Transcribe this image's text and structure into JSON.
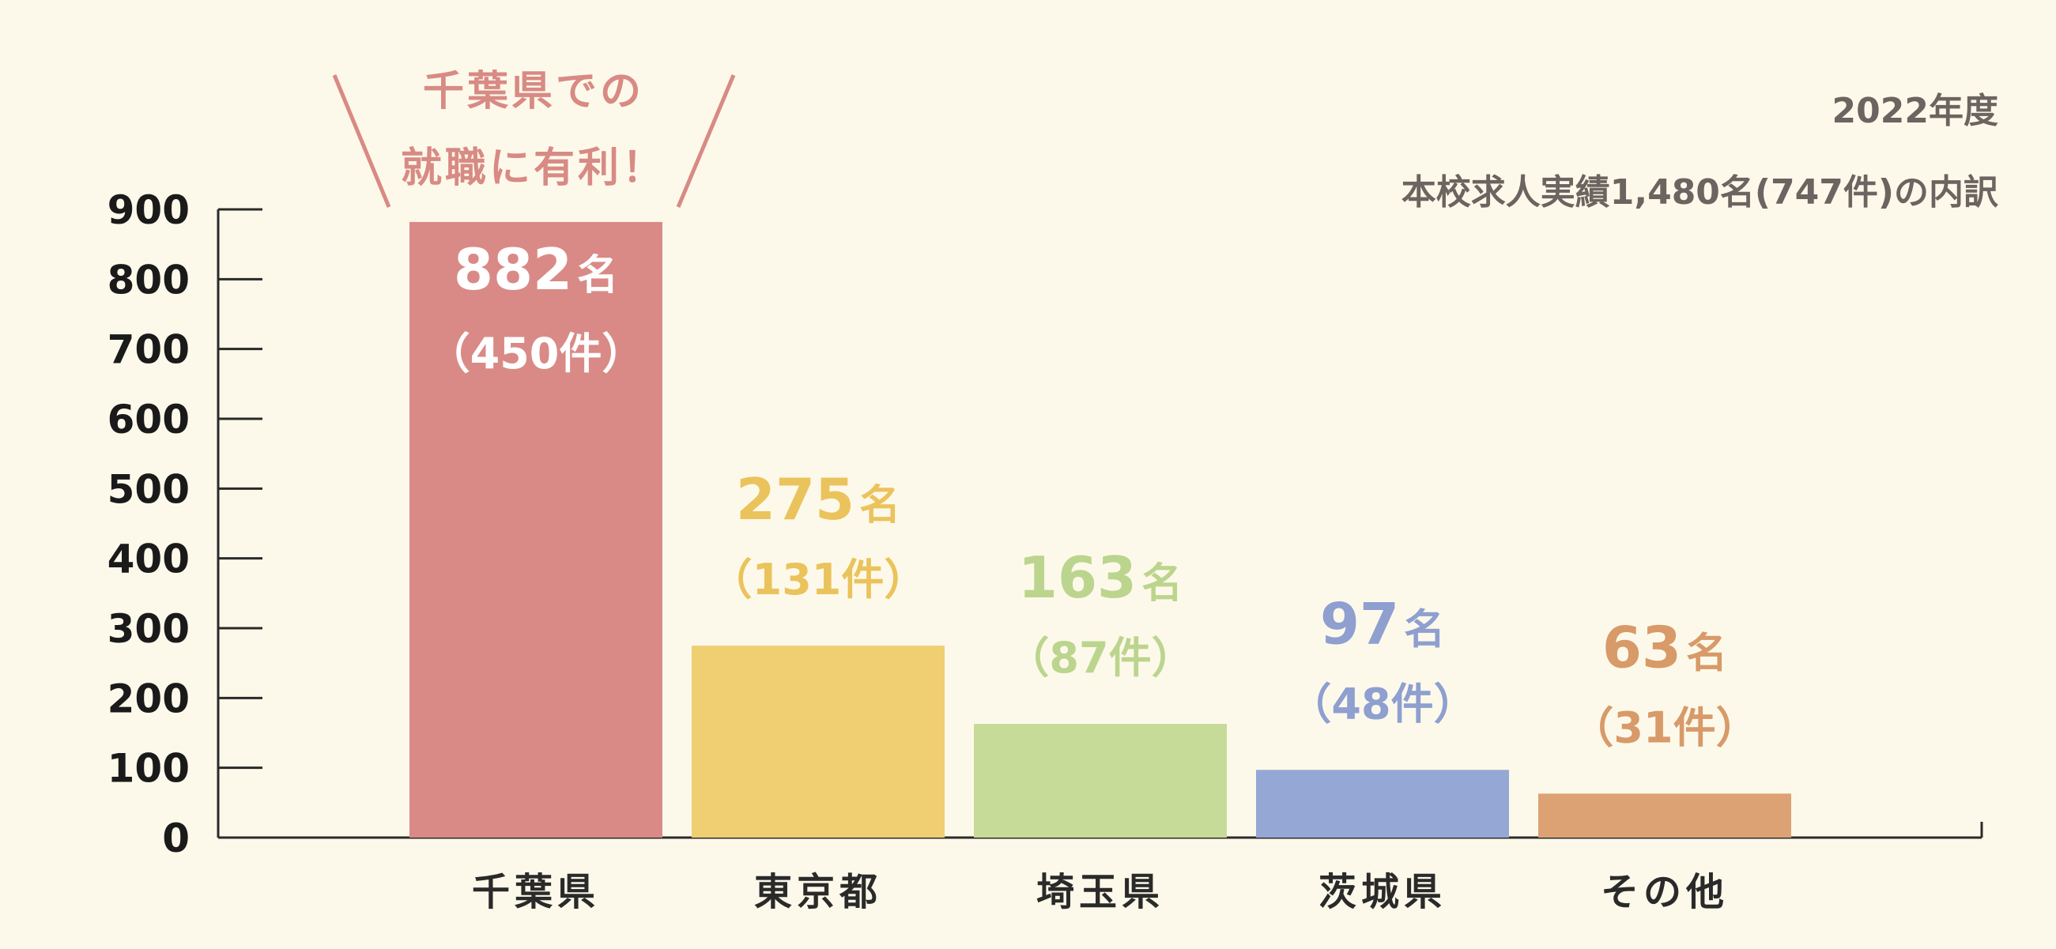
{
  "notes": {
    "year": "2022年度",
    "subtitle": "本校求人実績1,480名(747件)の内訳"
  },
  "callout": {
    "line1": "千葉県での",
    "line2": "就職に有利！",
    "color": "#d88a84"
  },
  "chart_data": {
    "type": "bar",
    "categories": [
      "千葉県",
      "東京都",
      "埼玉県",
      "茨城県",
      "その他"
    ],
    "values": [
      882,
      275,
      163,
      97,
      63
    ],
    "value_labels": [
      "882",
      "275",
      "163",
      "97",
      "63"
    ],
    "unit_label": "名",
    "sub_labels": [
      "（450件）",
      "（131件）",
      "（87件）",
      "（48件）",
      "（31件）"
    ],
    "colors": [
      "#d98a86",
      "#f0cf72",
      "#c7db98",
      "#95a7d4",
      "#dca274"
    ],
    "label_colors": [
      "#ffffff",
      "#ebc35c",
      "#bcd58e",
      "#8e9fd0",
      "#d79a68"
    ],
    "y_ticks": [
      "0",
      "100",
      "200",
      "300",
      "400",
      "500",
      "600",
      "700",
      "800",
      "900"
    ],
    "ylim": [
      0,
      900
    ],
    "grid": false,
    "title": "",
    "xlabel": "",
    "ylabel": ""
  }
}
